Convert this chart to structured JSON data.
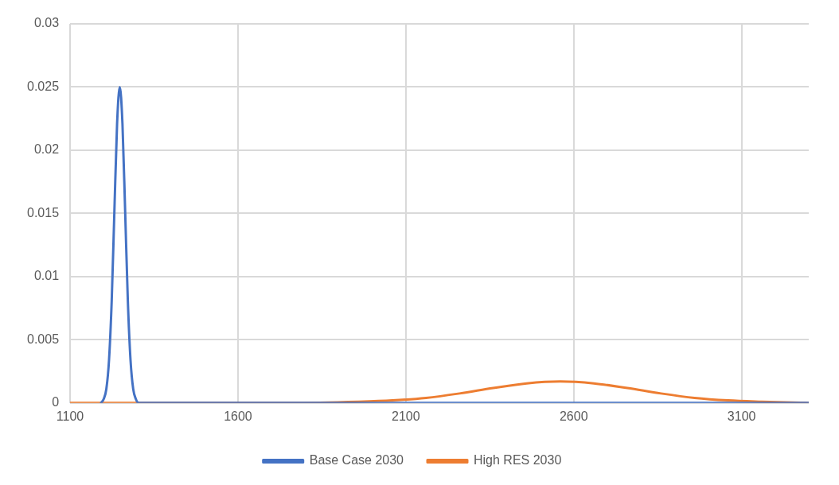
{
  "chart_data": {
    "type": "line",
    "xlim": [
      1100,
      3300
    ],
    "xticks": [
      1100,
      1600,
      2100,
      2600,
      3100
    ],
    "ylim": [
      0,
      0.03
    ],
    "yticks": [
      0,
      0.005,
      0.01,
      0.015,
      0.02,
      0.025,
      0.03
    ],
    "grid": true,
    "legend": "bottom",
    "marker": "none",
    "line_style": "solid",
    "series": [
      {
        "name": "Base Case 2030",
        "color": "#4472c4",
        "x": [
          1192,
          1200,
          1208,
          1216,
          1224,
          1232,
          1240,
          1248,
          1256,
          1264,
          1272,
          1280,
          1288,
          1296,
          1304,
          3300
        ],
        "values": [
          0,
          0.0003,
          0.0011,
          0.0034,
          0.0081,
          0.0152,
          0.0221,
          0.025,
          0.0221,
          0.0152,
          0.0081,
          0.0034,
          0.0011,
          0.0003,
          0,
          0
        ]
      },
      {
        "name": "High RES 2030",
        "color": "#ed7d31",
        "x": [
          1100,
          1760,
          1960,
          2060,
          2160,
          2260,
          2360,
          2460,
          2560,
          2660,
          2760,
          2860,
          2960,
          3060,
          3160,
          3300
        ],
        "values": [
          0,
          0,
          0.0001,
          0.0002,
          0.0004,
          0.00075,
          0.00118,
          0.00155,
          0.0017,
          0.00155,
          0.00118,
          0.00075,
          0.0004,
          0.0002,
          0.0001,
          0
        ]
      }
    ]
  }
}
